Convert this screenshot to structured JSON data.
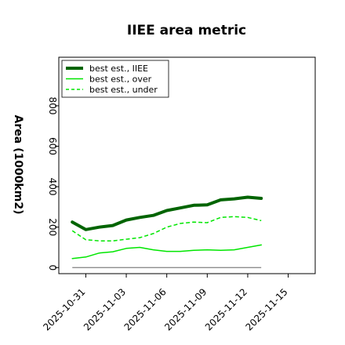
{
  "chart_data": {
    "type": "line",
    "title": "IIEE area metric",
    "xlabel": "",
    "ylabel": "Area (1000km2)",
    "x": [
      "2025-10-30",
      "2025-10-31",
      "2025-11-01",
      "2025-11-02",
      "2025-11-03",
      "2025-11-04",
      "2025-11-05",
      "2025-11-06",
      "2025-11-07",
      "2025-11-08",
      "2025-11-09",
      "2025-11-10",
      "2025-11-11",
      "2025-11-12",
      "2025-11-13"
    ],
    "xticks": [
      "2025-10-31",
      "2025-11-03",
      "2025-11-06",
      "2025-11-09",
      "2025-11-12",
      "2025-11-15"
    ],
    "xlim": [
      "2025-10-29",
      "2025-11-17"
    ],
    "yticks": [
      0,
      200,
      400,
      600,
      800
    ],
    "ylim": [
      -30,
      1040
    ],
    "grid": false,
    "legend_position": "top-left",
    "series": [
      {
        "name": "best est., IIEE",
        "color": "#006400",
        "style": "solid",
        "width": "thick",
        "values": [
          225,
          188,
          200,
          208,
          235,
          248,
          258,
          282,
          295,
          308,
          310,
          335,
          340,
          348,
          342
        ]
      },
      {
        "name": "best est., over",
        "color": "#00e600",
        "style": "solid",
        "width": "thin",
        "values": [
          45,
          52,
          72,
          78,
          95,
          100,
          88,
          80,
          80,
          85,
          88,
          85,
          88,
          100,
          112
        ]
      },
      {
        "name": "best est., under",
        "color": "#00e600",
        "style": "dashed",
        "width": "thin",
        "values": [
          182,
          138,
          132,
          132,
          140,
          148,
          168,
          200,
          218,
          225,
          222,
          248,
          252,
          248,
          232
        ]
      }
    ],
    "reference_line": {
      "y": 0,
      "color": "#808080"
    }
  }
}
